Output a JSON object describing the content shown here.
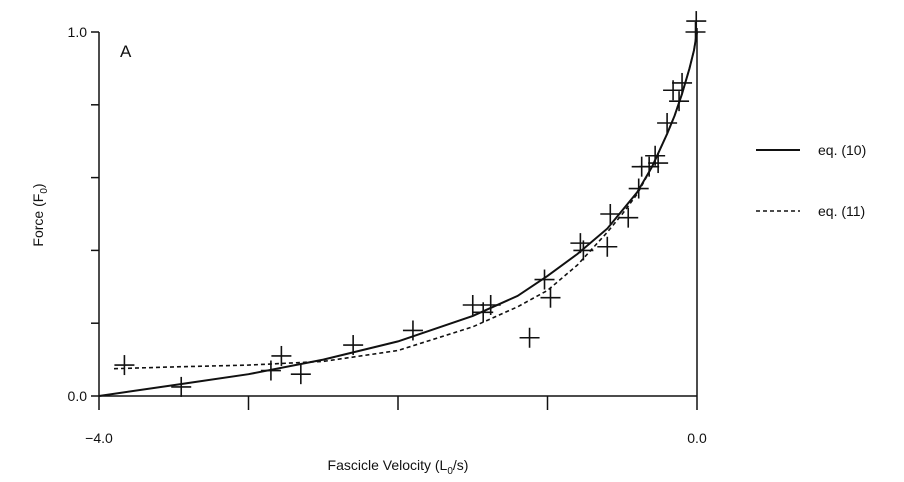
{
  "chart_data": {
    "type": "scatter",
    "title": "",
    "panel_label": "A",
    "xlabel": {
      "main": "Fascicle Velocity (L",
      "sub": "0",
      "tail": "/s)"
    },
    "ylabel": {
      "main": "Force (F",
      "sub": "0",
      "tail": ")"
    },
    "xlim": [
      -4.0,
      0.0
    ],
    "ylim": [
      0.0,
      1.0
    ],
    "x_ticks": [
      -4.0,
      -3.0,
      -2.0,
      -1.0,
      0.0
    ],
    "x_tick_labels": [
      "−4.0",
      "",
      "",
      "",
      "0.0"
    ],
    "y_ticks": [
      0.0,
      0.2,
      0.4,
      0.6,
      0.8,
      1.0
    ],
    "y_tick_labels": [
      "0.0",
      "",
      "",
      "",
      "",
      "1.0"
    ],
    "grid": false,
    "legend_position": "right",
    "points": [
      {
        "x": -3.83,
        "y": 0.085
      },
      {
        "x": -3.45,
        "y": 0.025
      },
      {
        "x": -2.85,
        "y": 0.07
      },
      {
        "x": -2.78,
        "y": 0.11
      },
      {
        "x": -2.65,
        "y": 0.06
      },
      {
        "x": -2.3,
        "y": 0.14
      },
      {
        "x": -1.9,
        "y": 0.18
      },
      {
        "x": -1.5,
        "y": 0.25
      },
      {
        "x": -1.43,
        "y": 0.23
      },
      {
        "x": -1.38,
        "y": 0.25
      },
      {
        "x": -1.12,
        "y": 0.16
      },
      {
        "x": -1.02,
        "y": 0.32
      },
      {
        "x": -0.98,
        "y": 0.27
      },
      {
        "x": -0.78,
        "y": 0.42
      },
      {
        "x": -0.76,
        "y": 0.4
      },
      {
        "x": -0.6,
        "y": 0.41
      },
      {
        "x": -0.58,
        "y": 0.5
      },
      {
        "x": -0.46,
        "y": 0.49
      },
      {
        "x": -0.39,
        "y": 0.57
      },
      {
        "x": -0.37,
        "y": 0.63
      },
      {
        "x": -0.32,
        "y": 0.63
      },
      {
        "x": -0.28,
        "y": 0.66
      },
      {
        "x": -0.26,
        "y": 0.64
      },
      {
        "x": -0.2,
        "y": 0.75
      },
      {
        "x": -0.16,
        "y": 0.84
      },
      {
        "x": -0.12,
        "y": 0.81
      },
      {
        "x": -0.1,
        "y": 0.86
      },
      {
        "x": -0.01,
        "y": 1.0
      },
      {
        "x": -0.005,
        "y": 1.03
      }
    ],
    "series": [
      {
        "name": "eq. (10)",
        "style": "solid",
        "color": "#111111",
        "x": [
          -4.0,
          -3.5,
          -3.0,
          -2.5,
          -2.0,
          -1.5,
          -1.2,
          -1.0,
          -0.8,
          -0.6,
          -0.5,
          -0.4,
          -0.3,
          -0.2,
          -0.15,
          -0.1,
          -0.05,
          -0.02,
          0.0
        ],
        "y": [
          0.0,
          0.03,
          0.06,
          0.1,
          0.15,
          0.22,
          0.275,
          0.33,
          0.39,
          0.46,
          0.51,
          0.56,
          0.63,
          0.72,
          0.77,
          0.83,
          0.9,
          0.95,
          1.0
        ]
      },
      {
        "name": "eq. (11)",
        "style": "dashed",
        "color": "#111111",
        "x": [
          -3.9,
          -3.5,
          -3.0,
          -2.5,
          -2.0,
          -1.5,
          -1.2,
          -1.0,
          -0.8,
          -0.6,
          -0.5,
          -0.4,
          -0.3,
          -0.2,
          -0.15,
          -0.1,
          -0.05,
          -0.02,
          0.0
        ],
        "y": [
          0.075,
          0.08,
          0.085,
          0.095,
          0.125,
          0.19,
          0.245,
          0.29,
          0.36,
          0.45,
          0.5,
          0.555,
          0.63,
          0.72,
          0.77,
          0.83,
          0.9,
          0.95,
          1.0
        ]
      }
    ]
  }
}
